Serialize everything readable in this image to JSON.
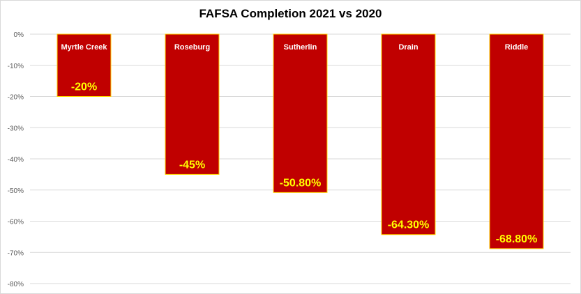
{
  "chart_data": {
    "type": "bar",
    "title": "FAFSA Completion 2021 vs 2020",
    "xlabel": "",
    "ylabel": "",
    "ylim": [
      -80,
      0
    ],
    "yticks": [
      0,
      -10,
      -20,
      -30,
      -40,
      -50,
      -60,
      -70,
      -80
    ],
    "ytick_labels": [
      "0%",
      "-10%",
      "-20%",
      "-30%",
      "-40%",
      "-50%",
      "-60%",
      "-70%",
      "-80%"
    ],
    "categories": [
      "Myrtle Creek",
      "Roseburg",
      "Sutherlin",
      "Drain",
      "Riddle"
    ],
    "values": [
      -20,
      -45,
      -50.8,
      -64.3,
      -68.8
    ],
    "data_labels": [
      "-20%",
      "-45%",
      "-50.80%",
      "-64.30%",
      "-68.80%"
    ],
    "category_labels_inside_bars": true,
    "grid": true,
    "legend": "none",
    "colors": {
      "bar_fill": "#c00000",
      "bar_border": "#ffd700",
      "data_label": "#ffff00",
      "category_label": "#ffffff",
      "gridline": "#d9d9d9",
      "tick_label": "#595959"
    }
  }
}
